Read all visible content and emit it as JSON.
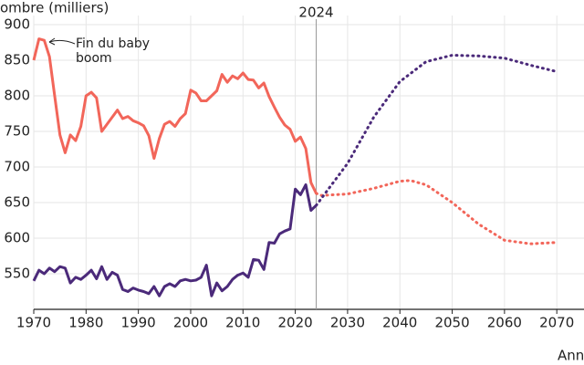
{
  "chart_data": {
    "type": "line",
    "y_label": "ombre (milliers)",
    "x_label": "Ann",
    "annotation": "Fin du baby boom",
    "marker_label": "2024",
    "marker_x": 2024,
    "xlim": [
      1970,
      2075.2
    ],
    "ylim": [
      500,
      900
    ],
    "xticks": [
      1970,
      1980,
      1990,
      2000,
      2010,
      2020,
      2030,
      2040,
      2050,
      2060,
      2070
    ],
    "yticks": [
      550,
      600,
      650,
      700,
      750,
      800,
      850,
      900
    ],
    "grid": true,
    "series": [
      {
        "color": "#f2665a",
        "dashed": false,
        "x": [
          1970,
          1971,
          1972,
          1973,
          1974,
          1975,
          1976,
          1977,
          1978,
          1979,
          1980,
          1981,
          1982,
          1983,
          1984,
          1985,
          1986,
          1987,
          1988,
          1989,
          1990,
          1991,
          1992,
          1993,
          1994,
          1995,
          1996,
          1997,
          1998,
          1999,
          2000,
          2001,
          2002,
          2003,
          2004,
          2005,
          2006,
          2007,
          2008,
          2009,
          2010,
          2011,
          2012,
          2013,
          2014,
          2015,
          2016,
          2017,
          2018,
          2019,
          2020,
          2021,
          2022,
          2023,
          2024
        ],
        "values": [
          850,
          880,
          878,
          855,
          800,
          745,
          720,
          745,
          737,
          757,
          800,
          805,
          797,
          750,
          760,
          770,
          780,
          768,
          771,
          765,
          762,
          758,
          744,
          712,
          740,
          760,
          764,
          757,
          768,
          775,
          808,
          804,
          793,
          793,
          800,
          807,
          830,
          819,
          828,
          824,
          832,
          823,
          822,
          811,
          818,
          799,
          784,
          770,
          759,
          753,
          736,
          742,
          726,
          678,
          663
        ]
      },
      {
        "color": "#4b2a7a",
        "dashed": false,
        "x": [
          1970,
          1971,
          1972,
          1973,
          1974,
          1975,
          1976,
          1977,
          1978,
          1979,
          1980,
          1981,
          1982,
          1983,
          1984,
          1985,
          1986,
          1987,
          1988,
          1989,
          1990,
          1991,
          1992,
          1993,
          1994,
          1995,
          1996,
          1997,
          1998,
          1999,
          2000,
          2001,
          2002,
          2003,
          2004,
          2005,
          2006,
          2007,
          2008,
          2009,
          2010,
          2011,
          2012,
          2013,
          2014,
          2015,
          2016,
          2017,
          2018,
          2019,
          2020,
          2021,
          2022,
          2023,
          2024
        ],
        "values": [
          540,
          555,
          550,
          558,
          553,
          560,
          558,
          537,
          545,
          542,
          548,
          555,
          543,
          560,
          542,
          552,
          548,
          528,
          525,
          530,
          527,
          525,
          522,
          532,
          519,
          532,
          536,
          532,
          540,
          542,
          540,
          541,
          545,
          562,
          519,
          537,
          526,
          532,
          542,
          548,
          551,
          545,
          570,
          569,
          556,
          594,
          593,
          606,
          610,
          613,
          669,
          661,
          675,
          639,
          646
        ]
      },
      {
        "color": "#f2665a",
        "dashed": true,
        "x": [
          2024,
          2025,
          2030,
          2035,
          2040,
          2042,
          2045,
          2050,
          2055,
          2060,
          2065,
          2070
        ],
        "values": [
          663,
          660,
          662,
          670,
          680,
          681,
          675,
          650,
          620,
          597,
          592,
          594
        ]
      },
      {
        "color": "#4b2a7a",
        "dashed": true,
        "x": [
          2024,
          2030,
          2035,
          2040,
          2045,
          2050,
          2055,
          2060,
          2065,
          2070
        ],
        "values": [
          646,
          705,
          770,
          820,
          848,
          857,
          856,
          853,
          843,
          834
        ]
      }
    ]
  }
}
